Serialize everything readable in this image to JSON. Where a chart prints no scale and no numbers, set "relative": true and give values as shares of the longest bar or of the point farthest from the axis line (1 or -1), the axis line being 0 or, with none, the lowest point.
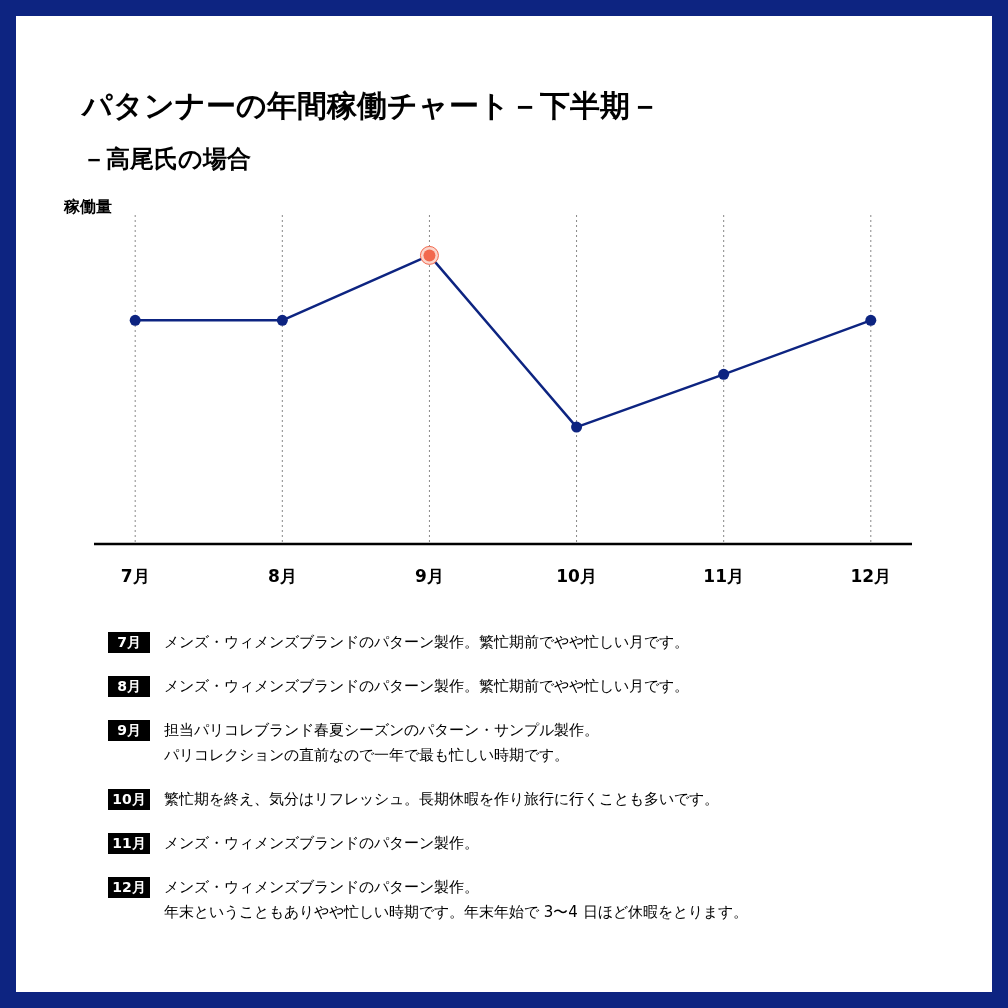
{
  "chart_data": {
    "type": "line",
    "title": "パタンナーの年間稼働チャート－下半期－",
    "subtitle": "－高尾氏の場合",
    "ylabel": "稼働量",
    "relative": true,
    "categories": [
      "7月",
      "8月",
      "9月",
      "10月",
      "11月",
      "12月"
    ],
    "series": [
      {
        "type": "line",
        "color": "#0d2481",
        "colors": [
          "#0d2481",
          "#0d2481",
          "#f2694e",
          "#0d2481",
          "#0d2481",
          "#0d2481"
        ],
        "values": [
          0.775,
          0.775,
          1,
          0.405,
          0.588,
          0.775
        ]
      }
    ],
    "grid": "x",
    "marker": "circle",
    "line_style": "solid",
    "legend": false,
    "annotations": [
      "7月",
      "メンズ・ウィメンズブランドのパターン製作。繁忙期前でやや忙しい月です。",
      "8月",
      "メンズ・ウィメンズブランドのパターン製作。繁忙期前でやや忙しい月です。",
      "9月",
      "担当パリコレブランド春夏シーズンのパターン・サンプル製作。",
      "パリコレクションの直前なので一年で最も忙しい時期です。",
      "10月",
      "繁忙期を終え、気分はリフレッシュ。長期休暇を作り旅行に行くことも多いです。",
      "11月",
      "メンズ・ウィメンズブランドのパターン製作。",
      "12月",
      "メンズ・ウィメンズブランドのパターン製作。",
      "年末ということもありやや忙しい時期です。年末年始で 3〜4 日ほど休暇をとります。"
    ]
  }
}
